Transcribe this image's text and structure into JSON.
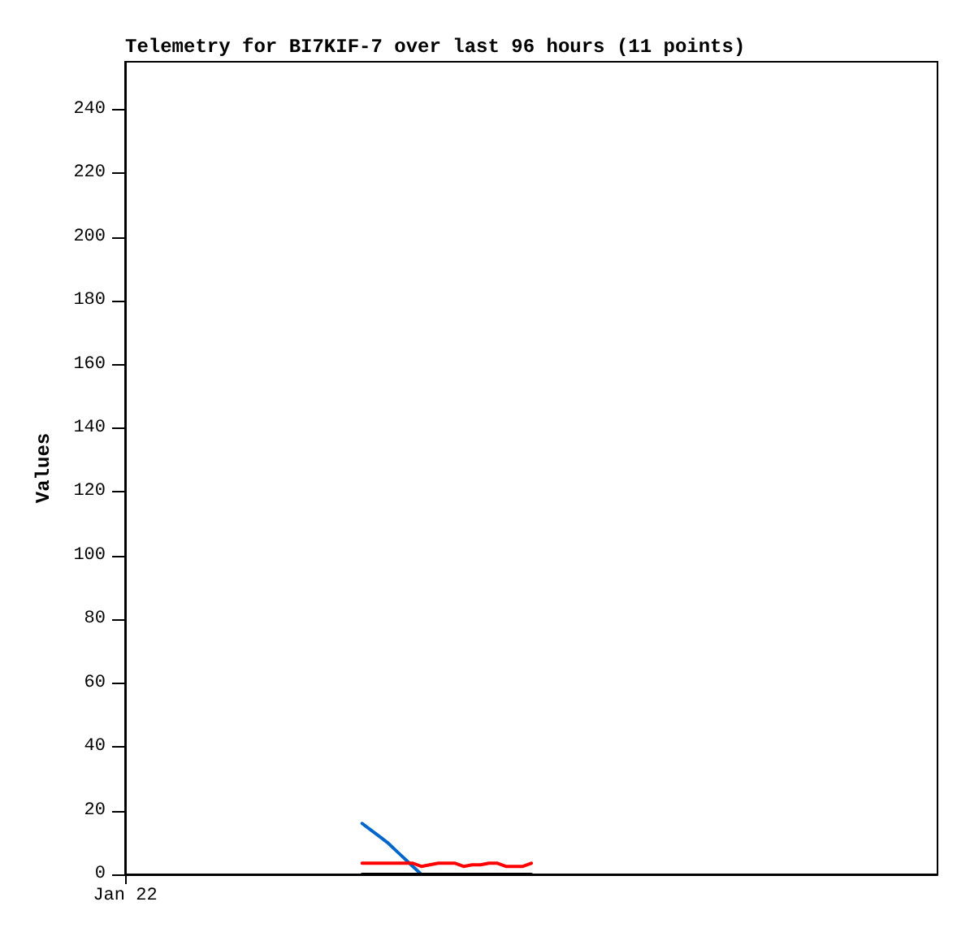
{
  "chart_data": {
    "type": "line",
    "title": "Telemetry for BI7KIF-7 over last 96 hours (11 points)",
    "ylabel": "Values",
    "categories": [
      "Jan 22",
      null,
      null,
      null,
      null,
      null,
      null,
      null,
      null,
      null,
      null,
      null,
      null,
      null,
      null,
      null,
      null,
      null,
      null,
      null,
      null,
      null,
      null,
      null,
      null,
      null,
      null,
      null,
      null,
      null,
      null,
      null,
      null,
      null,
      null,
      null,
      null,
      null,
      null,
      null,
      null,
      null,
      null,
      null,
      null,
      null,
      null,
      null,
      null,
      null,
      null,
      null,
      null,
      null,
      null,
      null,
      null,
      null,
      null,
      null,
      null,
      null,
      null,
      null,
      null,
      null,
      null,
      null,
      null,
      null,
      null,
      null,
      null,
      null,
      null,
      null,
      null,
      null,
      null,
      null,
      null,
      null,
      null,
      null,
      null,
      null,
      null,
      null,
      null,
      null,
      null,
      null,
      null,
      null,
      null,
      null,
      null
    ],
    "ylim": [
      0,
      255
    ],
    "yticks": [
      0,
      20,
      40,
      60,
      80,
      100,
      120,
      140,
      160,
      180,
      200,
      220,
      240
    ],
    "grid": false,
    "marker": "none",
    "line_style": "solid",
    "series": [
      {
        "color": "#0066cc",
        "values": [
          null,
          null,
          null,
          null,
          null,
          null,
          null,
          null,
          null,
          null,
          null,
          null,
          null,
          null,
          null,
          null,
          null,
          null,
          null,
          null,
          null,
          null,
          null,
          null,
          null,
          null,
          null,
          null,
          16,
          14,
          12,
          10,
          7.5,
          5,
          2.5,
          0,
          null,
          null,
          null,
          null,
          null,
          null,
          null,
          null,
          null,
          null,
          null,
          null,
          null,
          null,
          null,
          null,
          null,
          null,
          null,
          null,
          null,
          null,
          null,
          null,
          null,
          null,
          null,
          null,
          null,
          null,
          null,
          null,
          null,
          null,
          null,
          null,
          null,
          null,
          null,
          null,
          null,
          null,
          null,
          null,
          null,
          null,
          null,
          null,
          null,
          null,
          null,
          null,
          null,
          null,
          null,
          null,
          null,
          null,
          null,
          null,
          null
        ]
      },
      {
        "color": "#ff0000",
        "values": [
          null,
          null,
          null,
          null,
          null,
          null,
          null,
          null,
          null,
          null,
          null,
          null,
          null,
          null,
          null,
          null,
          null,
          null,
          null,
          null,
          null,
          null,
          null,
          null,
          null,
          null,
          null,
          null,
          3.5,
          3.5,
          3.5,
          3.5,
          3.5,
          3.5,
          3.5,
          2.5,
          3,
          3.5,
          3.5,
          3.5,
          2.5,
          3,
          3,
          3.5,
          3.5,
          2.5,
          2.5,
          2.5,
          3.5,
          null,
          null,
          null,
          null,
          null,
          null,
          null,
          null,
          null,
          null,
          null,
          null,
          null,
          null,
          null,
          null,
          null,
          null,
          null,
          null,
          null,
          null,
          null,
          null,
          null,
          null,
          null,
          null,
          null,
          null,
          null,
          null,
          null,
          null,
          null,
          null,
          null,
          null,
          null,
          null,
          null,
          null,
          null,
          null,
          null,
          null,
          null,
          null
        ]
      },
      {
        "color": "#000000",
        "values": [
          null,
          null,
          null,
          null,
          null,
          null,
          null,
          null,
          null,
          null,
          null,
          null,
          null,
          null,
          null,
          null,
          null,
          null,
          null,
          null,
          null,
          null,
          null,
          null,
          null,
          null,
          null,
          null,
          0,
          0,
          0,
          0,
          0,
          0,
          0,
          0,
          0,
          0,
          0,
          0,
          0,
          0,
          0,
          0,
          0,
          0,
          0,
          0,
          0,
          null,
          null,
          null,
          null,
          null,
          null,
          null,
          null,
          null,
          null,
          null,
          null,
          null,
          null,
          null,
          null,
          null,
          null,
          null,
          null,
          null,
          null,
          null,
          null,
          null,
          null,
          null,
          null,
          null,
          null,
          null,
          null,
          null,
          null,
          null,
          null,
          null,
          null,
          null,
          null,
          null,
          null,
          null,
          null,
          null,
          null,
          null,
          null
        ]
      }
    ]
  }
}
